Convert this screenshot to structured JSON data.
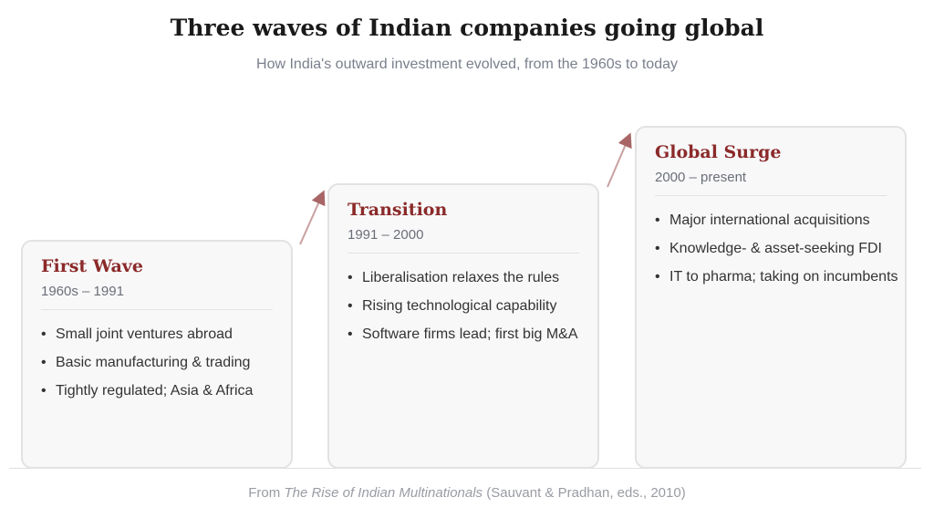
{
  "header": {
    "title": "Three waves of Indian companies going global",
    "subtitle": "How India's outward investment evolved, from the 1960s to today"
  },
  "stages": [
    {
      "title": "First Wave",
      "period": "1960s – 1991",
      "points": [
        "Small joint ventures abroad",
        "Basic manufacturing & trading",
        "Tightly regulated; Asia & Africa"
      ]
    },
    {
      "title": "Transition",
      "period": "1991 – 2000",
      "points": [
        "Liberalisation relaxes the rules",
        "Rising technological capability",
        "Software firms lead; first big M&A"
      ]
    },
    {
      "title": "Global Surge",
      "period": "2000 – present",
      "points": [
        "Major international acquisitions",
        "Knowledge- & asset-seeking FDI",
        "IT to pharma; taking on incumbents"
      ]
    }
  ],
  "footer": {
    "prefix": "From ",
    "source_title": "The Rise of Indian Multinationals",
    "suffix": " (Sauvant & Pradhan, eds., 2010)"
  }
}
